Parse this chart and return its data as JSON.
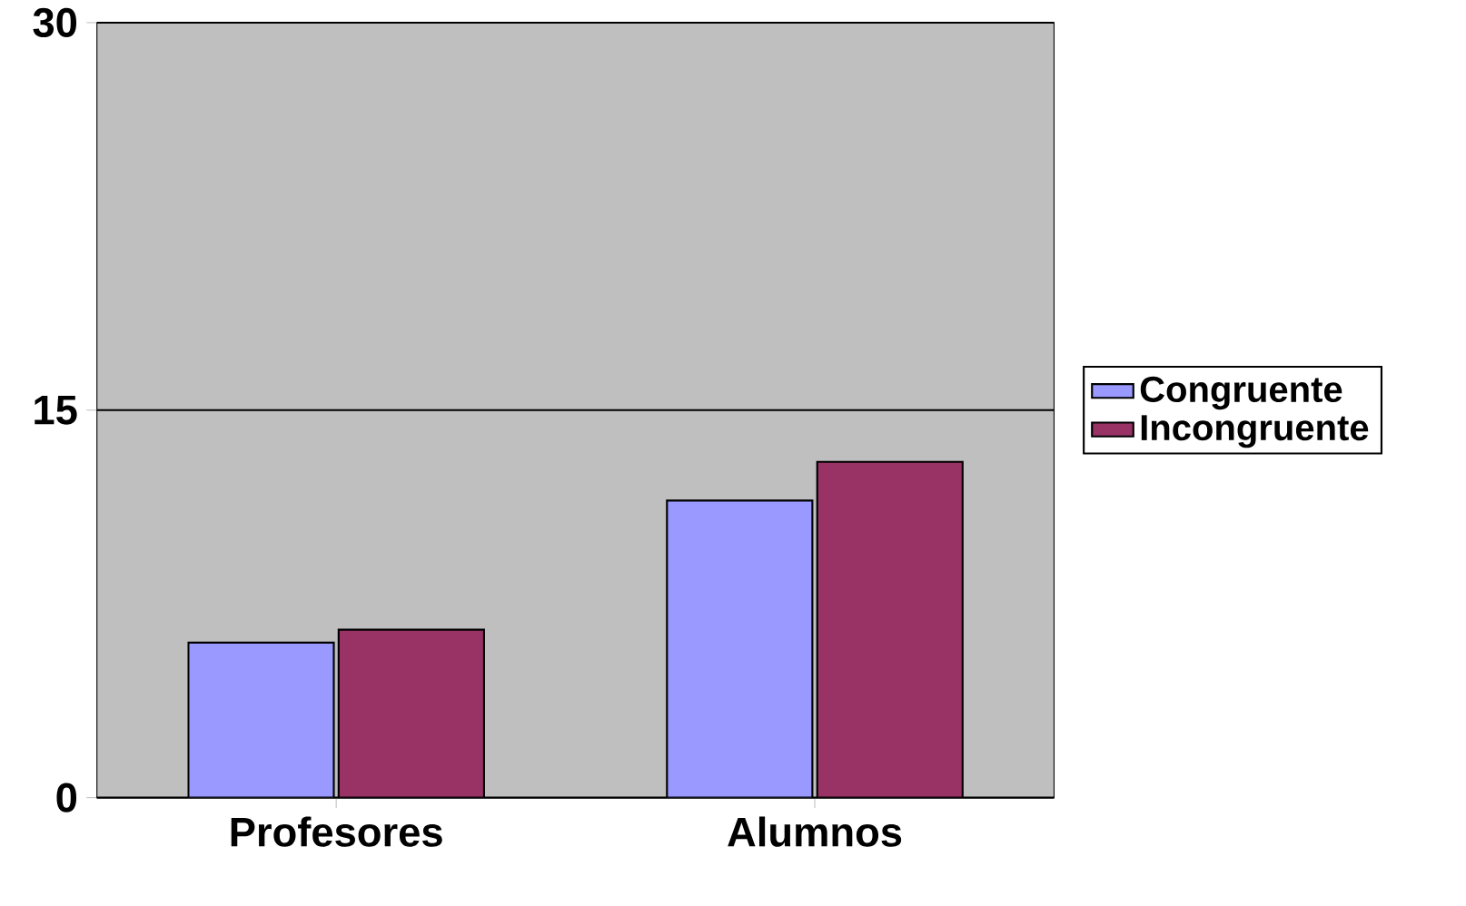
{
  "chart_data": {
    "type": "bar",
    "categories": [
      "Profesores",
      "Alumnos"
    ],
    "series": [
      {
        "name": "Congruente",
        "color": "#9999ff",
        "values": [
          6,
          11.5
        ]
      },
      {
        "name": "Incongruente",
        "color": "#993366",
        "values": [
          6.5,
          13
        ]
      }
    ],
    "ylim": [
      0,
      30
    ],
    "yticks": [
      0,
      15,
      30
    ],
    "grid": "y",
    "legend": "right"
  }
}
